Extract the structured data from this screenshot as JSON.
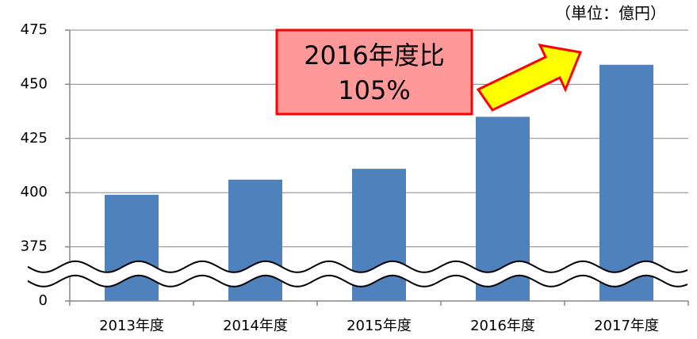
{
  "chart_data": {
    "type": "bar",
    "categories": [
      "2013年度",
      "2014年度",
      "2015年度",
      "2016年度",
      "2017年度"
    ],
    "values": [
      399,
      406,
      411,
      435,
      459
    ],
    "color": "#4f81bd",
    "ylim": [
      0,
      475
    ],
    "yticks": [
      0,
      375,
      400,
      425,
      450,
      475
    ],
    "axis_break": true,
    "grid": true,
    "unit_label": "（単位：億円）",
    "annotation": [
      "2016年度比",
      "105%"
    ]
  }
}
